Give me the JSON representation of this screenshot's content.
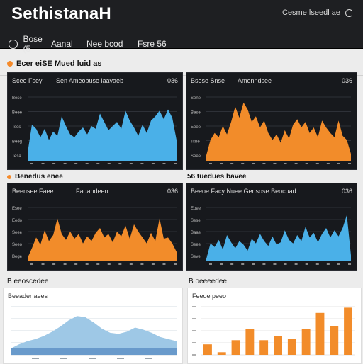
{
  "header": {
    "app_title": "SethistanaH",
    "user_label": "Cesme lseedl ae",
    "nav": [
      {
        "label": "Bose (5",
        "icon": "circle-icon"
      },
      {
        "label": "Aanal"
      },
      {
        "label": "Nee bcod"
      },
      {
        "label": "Fsre 56"
      }
    ]
  },
  "sections": {
    "main_title": "Ecer eiSE Mued luid as",
    "row2_left_title": "Benedus enee",
    "row2_right_title": "56 tuedues bavee",
    "row3_left_title": "B eeoscedee",
    "row3_right_title": "B oeeeedee"
  },
  "panels": [
    {
      "title": "Scee Fsey",
      "subtitle": "Sen Ameobuse iaavaeb",
      "count": "036",
      "color": "#4ab0e8",
      "y_labels": [
        "Bese",
        "Beee",
        "Tsos",
        "Beeg",
        "Tesa"
      ]
    },
    {
      "title": "Bsese Snse",
      "subtitle": "Amenndsee",
      "count": "036",
      "color": "#f28c2a",
      "y_labels": [
        "Sene",
        "Bese",
        "Eeee",
        "Tsne",
        "Seee"
      ]
    },
    {
      "title": "Beensee Faee",
      "subtitle": "Fadandeen",
      "count": "036",
      "color": "#f28c2a",
      "y_labels": [
        "Esee",
        "Eedo",
        "Seee",
        "Seeo",
        "Bege"
      ]
    },
    {
      "title": "Beeoe Facy Nuee Gensose Beocuad",
      "subtitle": "",
      "count": "036",
      "color": "#4ab0e8",
      "y_labels": [
        "Eoee",
        "Sese",
        "Baae",
        "Seee",
        "Seve"
      ]
    }
  ],
  "light_panels": [
    {
      "title": "Beeader aees",
      "color": "#9ec8e6"
    },
    {
      "title": "Feeoe peeo",
      "color": "#f28c2a"
    }
  ],
  "chart_data": [
    {
      "type": "area",
      "x": [
        0,
        1,
        2,
        3,
        4,
        5,
        6,
        7,
        8,
        9,
        10,
        11,
        12,
        13,
        14,
        15,
        16,
        17,
        18,
        19,
        20,
        21,
        22,
        23,
        24,
        25,
        26,
        27,
        28,
        29,
        30,
        31,
        32,
        33,
        34,
        35
      ],
      "y": [
        0.12,
        0.52,
        0.46,
        0.34,
        0.46,
        0.3,
        0.42,
        0.36,
        0.64,
        0.5,
        0.38,
        0.34,
        0.42,
        0.48,
        0.38,
        0.5,
        0.46,
        0.68,
        0.56,
        0.44,
        0.5,
        0.56,
        0.46,
        0.72,
        0.58,
        0.48,
        0.36,
        0.52,
        0.4,
        0.58,
        0.64,
        0.72,
        0.6,
        0.74,
        0.62,
        0.3
      ]
    },
    {
      "type": "area",
      "x": [
        0,
        1,
        2,
        3,
        4,
        5,
        6,
        7,
        8,
        9,
        10,
        11,
        12,
        13,
        14,
        15,
        16,
        17,
        18,
        19,
        20,
        21,
        22,
        23,
        24,
        25,
        26,
        27,
        28,
        29,
        30,
        31,
        32,
        33,
        34,
        35
      ],
      "y": [
        0.08,
        0.3,
        0.4,
        0.34,
        0.5,
        0.38,
        0.56,
        0.78,
        0.62,
        0.84,
        0.74,
        0.56,
        0.64,
        0.48,
        0.58,
        0.4,
        0.3,
        0.38,
        0.26,
        0.44,
        0.32,
        0.52,
        0.6,
        0.48,
        0.56,
        0.4,
        0.48,
        0.34,
        0.58,
        0.48,
        0.4,
        0.34,
        0.58,
        0.36,
        0.3,
        0.1
      ]
    },
    {
      "type": "area",
      "x": [
        0,
        1,
        2,
        3,
        4,
        5,
        6,
        7,
        8,
        9,
        10,
        11,
        12,
        13,
        14,
        15,
        16,
        17,
        18,
        19,
        20,
        21,
        22,
        23,
        24,
        25,
        26,
        27,
        28,
        29,
        30,
        31,
        32,
        33,
        34,
        35
      ],
      "y": [
        0.06,
        0.22,
        0.4,
        0.28,
        0.52,
        0.34,
        0.44,
        0.72,
        0.46,
        0.36,
        0.5,
        0.38,
        0.46,
        0.3,
        0.42,
        0.34,
        0.48,
        0.56,
        0.4,
        0.46,
        0.32,
        0.5,
        0.42,
        0.6,
        0.38,
        0.62,
        0.5,
        0.4,
        0.3,
        0.48,
        0.34,
        0.72,
        0.38,
        0.4,
        0.3,
        0.16
      ]
    },
    {
      "type": "area",
      "x": [
        0,
        1,
        2,
        3,
        4,
        5,
        6,
        7,
        8,
        9,
        10,
        11,
        12,
        13,
        14,
        15,
        16,
        17,
        18,
        19,
        20,
        21,
        22,
        23,
        24,
        25,
        26,
        27,
        28,
        29,
        30,
        31,
        32,
        33,
        34,
        35
      ],
      "y": [
        0.04,
        0.3,
        0.24,
        0.36,
        0.2,
        0.44,
        0.32,
        0.22,
        0.34,
        0.28,
        0.18,
        0.38,
        0.3,
        0.46,
        0.34,
        0.26,
        0.42,
        0.28,
        0.32,
        0.52,
        0.36,
        0.3,
        0.44,
        0.34,
        0.58,
        0.4,
        0.48,
        0.32,
        0.46,
        0.56,
        0.4,
        0.52,
        0.42,
        0.56,
        0.78,
        0.1
      ]
    },
    {
      "type": "area",
      "x": [
        0,
        1,
        2,
        3,
        4,
        5,
        6,
        7,
        8,
        9,
        10,
        11,
        12,
        13,
        14,
        15,
        16,
        17,
        18,
        19,
        20
      ],
      "y": [
        0.12,
        0.2,
        0.26,
        0.3,
        0.36,
        0.44,
        0.54,
        0.66,
        0.74,
        0.72,
        0.62,
        0.5,
        0.42,
        0.4,
        0.44,
        0.52,
        0.48,
        0.42,
        0.34,
        0.3,
        0.26
      ]
    },
    {
      "type": "bar",
      "values": [
        0.2,
        0.05,
        0.28,
        0.5,
        0.28,
        0.36,
        0.3,
        0.5,
        0.8,
        0.54,
        0.9
      ]
    }
  ]
}
